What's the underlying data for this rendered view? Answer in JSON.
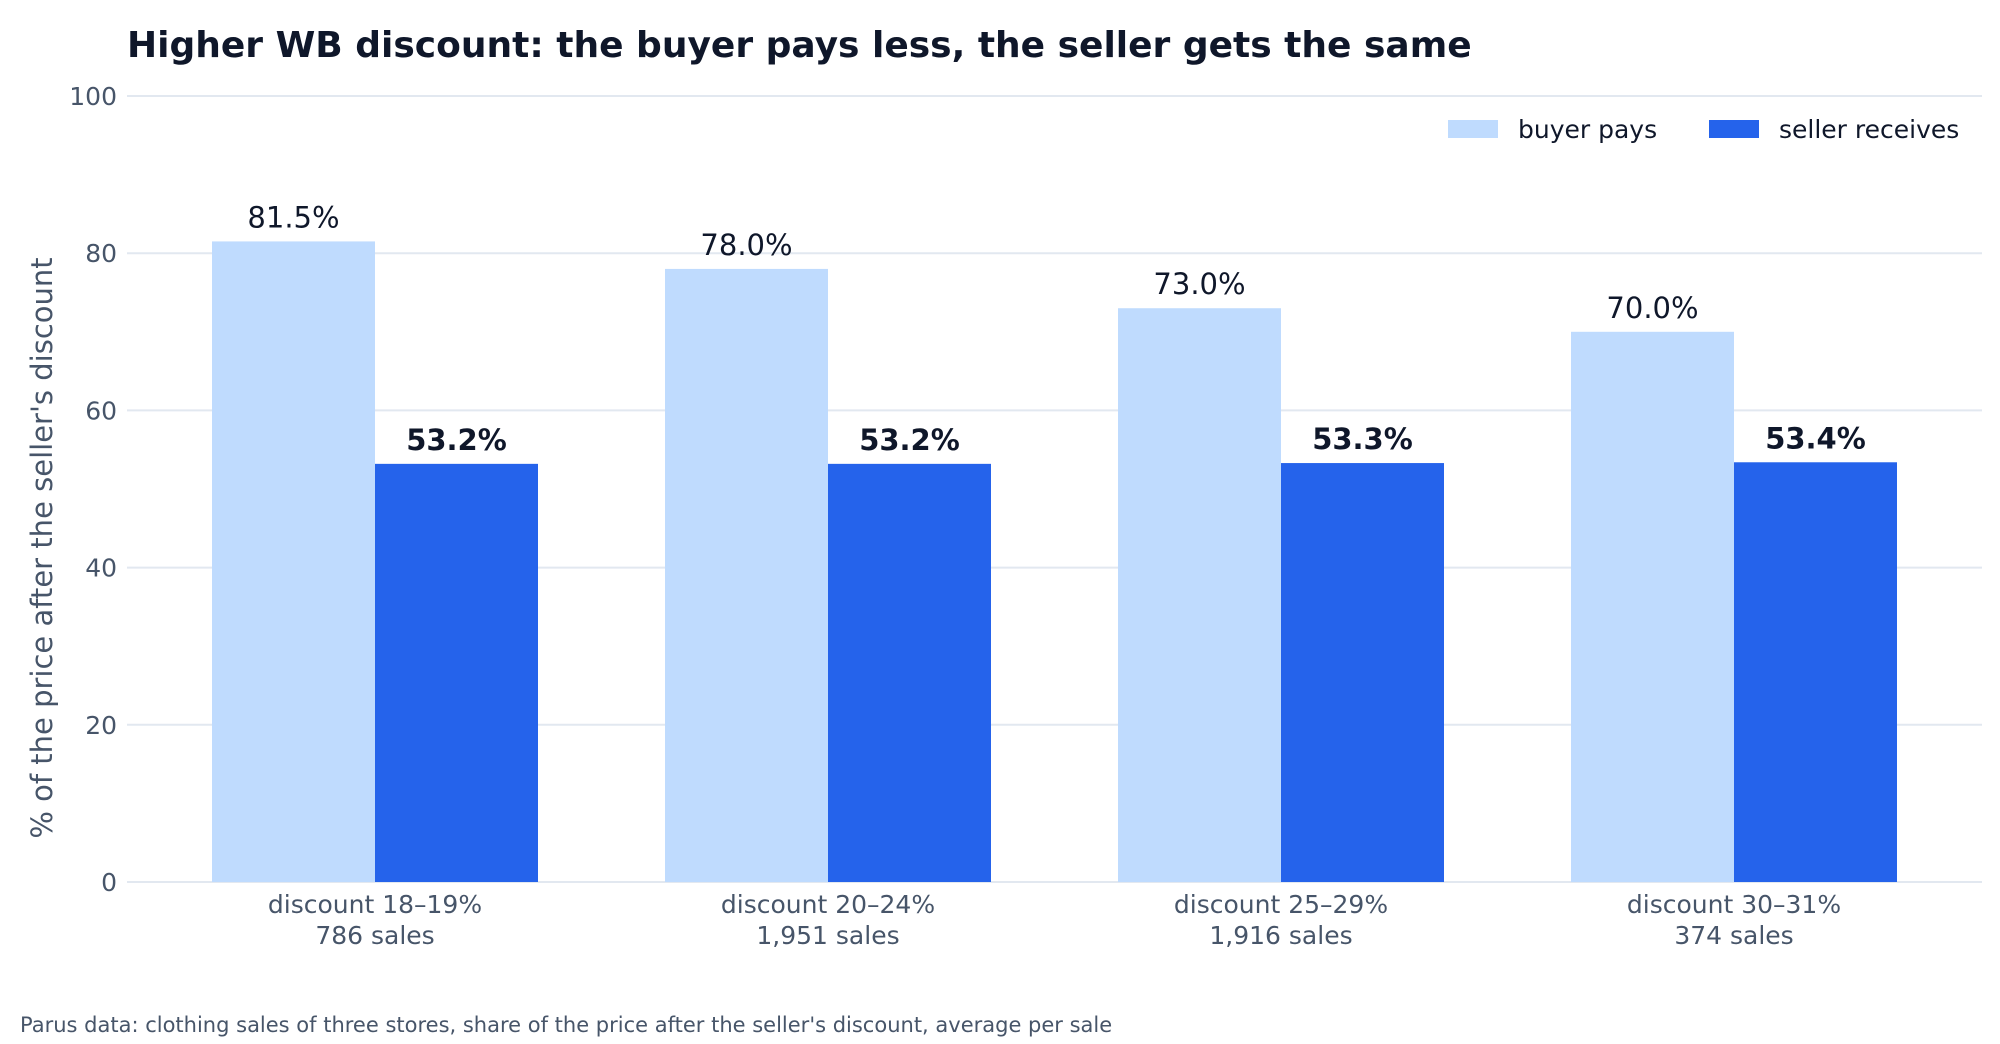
{
  "chart_data": {
    "type": "bar",
    "title": "Higher WB discount: the buyer pays less, the seller gets the same",
    "xlabel": "",
    "ylabel": "% of the price after the seller's discount",
    "ylim": [
      0,
      100
    ],
    "yticks": [
      0,
      20,
      40,
      60,
      80,
      100
    ],
    "grid": true,
    "legend_position": "top-right",
    "categories": [
      {
        "label": "discount 18–19%",
        "sublabel": "786 sales"
      },
      {
        "label": "discount 20–24%",
        "sublabel": "1,951 sales"
      },
      {
        "label": "discount 25–29%",
        "sublabel": "1,916 sales"
      },
      {
        "label": "discount 30–31%",
        "sublabel": "374 sales"
      }
    ],
    "series": [
      {
        "name": "buyer pays",
        "color": "#bfdbfe",
        "values": [
          81.5,
          78.0,
          73.0,
          70.0
        ],
        "labels": [
          "81.5%",
          "78.0%",
          "73.0%",
          "70.0%"
        ]
      },
      {
        "name": "seller receives",
        "color": "#2563eb",
        "values": [
          53.2,
          53.2,
          53.3,
          53.4
        ],
        "labels": [
          "53.2%",
          "53.2%",
          "53.3%",
          "53.4%"
        ]
      }
    ],
    "source": "Parus data: clothing sales of three stores, share of the price after the seller's discount, average per sale"
  },
  "colors": {
    "grid": "#e2e8f0",
    "text_dark": "#0f172a",
    "text_muted": "#475569"
  }
}
